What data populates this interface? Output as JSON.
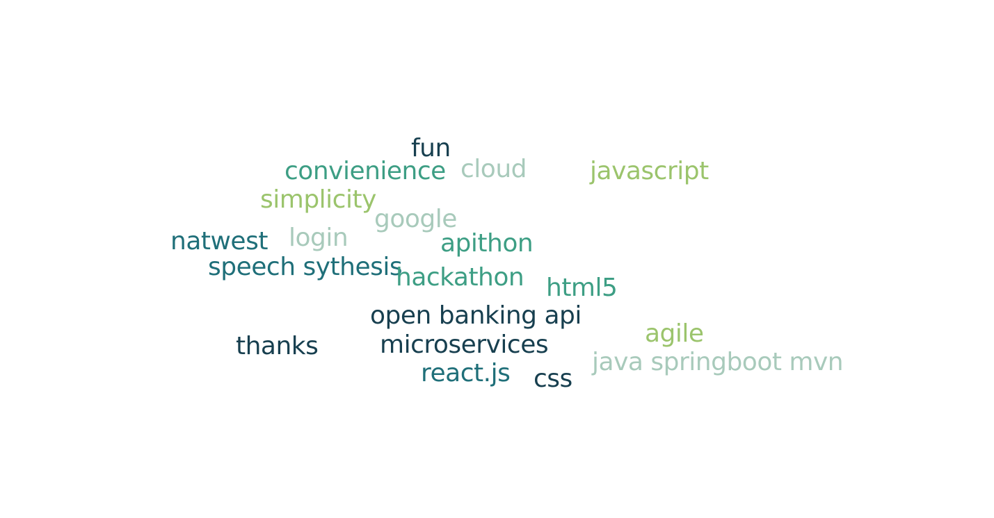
{
  "word_cloud": {
    "palette": {
      "dark_teal": "#173f4f",
      "teal": "#1f6f79",
      "green_teal": "#3d9e84",
      "light_green": "#9bc46c",
      "pale_sage": "#a8cabb"
    },
    "words": [
      {
        "id": "fun",
        "text": "fun",
        "color": "#173f4f"
      },
      {
        "id": "convienience",
        "text": "convienience",
        "color": "#3d9e84"
      },
      {
        "id": "cloud",
        "text": "cloud",
        "color": "#a8cabb"
      },
      {
        "id": "javascript",
        "text": "javascript",
        "color": "#9bc46c"
      },
      {
        "id": "simplicity",
        "text": "simplicity",
        "color": "#9bc46c"
      },
      {
        "id": "google",
        "text": "google",
        "color": "#a8cabb"
      },
      {
        "id": "natwest",
        "text": "natwest",
        "color": "#1f6f79"
      },
      {
        "id": "login",
        "text": "login",
        "color": "#a8cabb"
      },
      {
        "id": "apithon",
        "text": "apithon",
        "color": "#3d9e84"
      },
      {
        "id": "speech-sythesis",
        "text": "speech sythesis",
        "color": "#1f6f79"
      },
      {
        "id": "hackathon",
        "text": "hackathon",
        "color": "#3d9e84"
      },
      {
        "id": "html5",
        "text": "html5",
        "color": "#3d9e84"
      },
      {
        "id": "open-banking-api",
        "text": "open banking api",
        "color": "#173f4f"
      },
      {
        "id": "agile",
        "text": "agile",
        "color": "#9bc46c"
      },
      {
        "id": "thanks",
        "text": "thanks",
        "color": "#173f4f"
      },
      {
        "id": "microservices",
        "text": "microservices",
        "color": "#173f4f"
      },
      {
        "id": "java-springboot-mvn",
        "text": "java springboot mvn",
        "color": "#a8cabb"
      },
      {
        "id": "react-js",
        "text": "react.js",
        "color": "#1f6f79"
      },
      {
        "id": "css",
        "text": "css",
        "color": "#173f4f"
      }
    ]
  }
}
